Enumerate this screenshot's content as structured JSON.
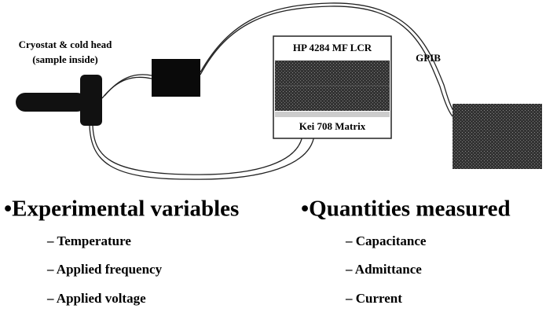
{
  "diagram": {
    "cryostat_label": [
      "Cryostat & cold head",
      "(sample inside)"
    ],
    "rack": [
      "HP 4284 MF LCR",
      "Kei 708 Matrix"
    ],
    "bus_label": "GPIB"
  },
  "lists": [
    {
      "heading": "•Experimental variables",
      "items": [
        "– Temperature",
        "– Applied frequency",
        "– Applied voltage"
      ]
    },
    {
      "heading": "•Quantities measured",
      "items": [
        "– Capacitance",
        "– Admittance",
        "– Current"
      ]
    }
  ]
}
